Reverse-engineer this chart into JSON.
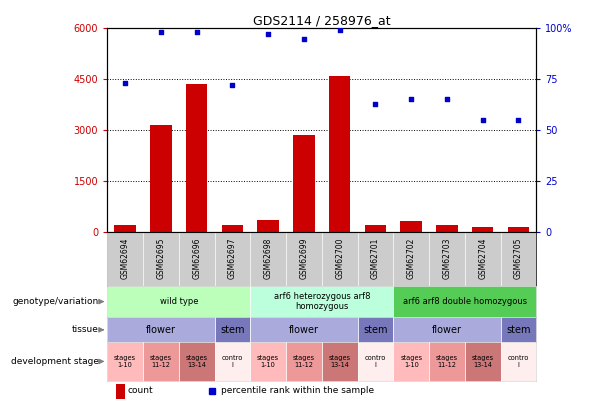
{
  "title": "GDS2114 / 258976_at",
  "samples": [
    "GSM62694",
    "GSM62695",
    "GSM62696",
    "GSM62697",
    "GSM62698",
    "GSM62699",
    "GSM62700",
    "GSM62701",
    "GSM62702",
    "GSM62703",
    "GSM62704",
    "GSM62705"
  ],
  "counts": [
    200,
    3150,
    4350,
    200,
    350,
    2850,
    4600,
    200,
    300,
    200,
    150,
    150
  ],
  "percentiles": [
    73,
    98,
    98,
    72,
    97,
    95,
    99,
    63,
    65,
    65,
    55,
    55
  ],
  "ylim_left": [
    0,
    6000
  ],
  "ylim_right": [
    0,
    100
  ],
  "yticks_left": [
    0,
    1500,
    3000,
    4500,
    6000
  ],
  "yticks_right": [
    0,
    25,
    50,
    75,
    100
  ],
  "yticklabels_right": [
    "0",
    "25",
    "50",
    "75",
    "100%"
  ],
  "bar_color": "#cc0000",
  "dot_color": "#0000cc",
  "grid_color": "#000000",
  "xticklabel_bg": "#cccccc",
  "genotype_groups": [
    {
      "label": "wild type",
      "start": 0,
      "end": 3,
      "color": "#bbffbb"
    },
    {
      "label": "arf6 heterozygous arf8\nhomozygous",
      "start": 4,
      "end": 7,
      "color": "#bbffdd"
    },
    {
      "label": "arf6 arf8 double homozygous",
      "start": 8,
      "end": 11,
      "color": "#55cc55"
    }
  ],
  "tissue_groups": [
    {
      "label": "flower",
      "start": 0,
      "end": 2,
      "color": "#aaaadd"
    },
    {
      "label": "stem",
      "start": 3,
      "end": 3,
      "color": "#7777bb"
    },
    {
      "label": "flower",
      "start": 4,
      "end": 6,
      "color": "#aaaadd"
    },
    {
      "label": "stem",
      "start": 7,
      "end": 7,
      "color": "#7777bb"
    },
    {
      "label": "flower",
      "start": 8,
      "end": 10,
      "color": "#aaaadd"
    },
    {
      "label": "stem",
      "start": 11,
      "end": 11,
      "color": "#7777bb"
    }
  ],
  "stage_groups": [
    {
      "label": "stages\n1-10",
      "start": 0,
      "end": 0,
      "color": "#ffbbbb"
    },
    {
      "label": "stages\n11-12",
      "start": 1,
      "end": 1,
      "color": "#ee9999"
    },
    {
      "label": "stages\n13-14",
      "start": 2,
      "end": 2,
      "color": "#cc7777"
    },
    {
      "label": "contro\nl",
      "start": 3,
      "end": 3,
      "color": "#ffeeee"
    },
    {
      "label": "stages\n1-10",
      "start": 4,
      "end": 4,
      "color": "#ffbbbb"
    },
    {
      "label": "stages\n11-12",
      "start": 5,
      "end": 5,
      "color": "#ee9999"
    },
    {
      "label": "stages\n13-14",
      "start": 6,
      "end": 6,
      "color": "#cc7777"
    },
    {
      "label": "contro\nl",
      "start": 7,
      "end": 7,
      "color": "#ffeeee"
    },
    {
      "label": "stages\n1-10",
      "start": 8,
      "end": 8,
      "color": "#ffbbbb"
    },
    {
      "label": "stages\n11-12",
      "start": 9,
      "end": 9,
      "color": "#ee9999"
    },
    {
      "label": "stages\n13-14",
      "start": 10,
      "end": 10,
      "color": "#cc7777"
    },
    {
      "label": "contro\nl",
      "start": 11,
      "end": 11,
      "color": "#ffeeee"
    }
  ],
  "row_labels": [
    "genotype/variation",
    "tissue",
    "development stage"
  ],
  "legend_bar_label": "count",
  "legend_dot_label": "percentile rank within the sample",
  "fig_width": 6.13,
  "fig_height": 4.05,
  "dpi": 100
}
